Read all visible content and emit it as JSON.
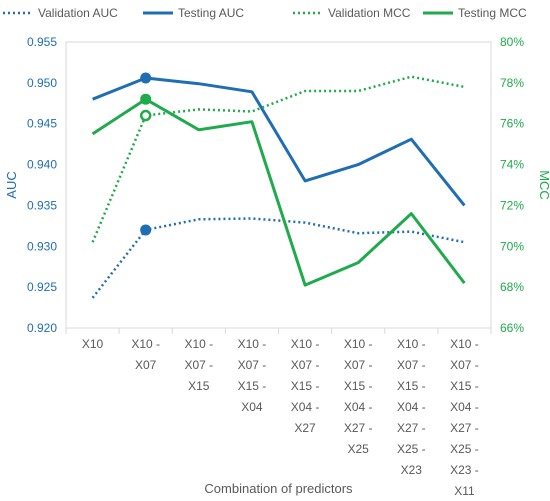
{
  "chart_data": {
    "type": "line",
    "title": "",
    "xlabel": "Combination of predictors",
    "ylabel_left": "AUC",
    "ylabel_right": "MCC",
    "categories": [
      [
        "X10"
      ],
      [
        "X10 -",
        "X07"
      ],
      [
        "X10 -",
        "X07 -",
        "X15"
      ],
      [
        "X10 -",
        "X07 -",
        "X15 -",
        "X04"
      ],
      [
        "X10 -",
        "X07 -",
        "X15 -",
        "X04 -",
        "X27"
      ],
      [
        "X10 -",
        "X07 -",
        "X15 -",
        "X04 -",
        "X27 -",
        "X25"
      ],
      [
        "X10 -",
        "X07 -",
        "X15 -",
        "X04 -",
        "X27 -",
        "X25 -",
        "X23"
      ],
      [
        "X10 -",
        "X07 -",
        "X15 -",
        "X04 -",
        "X27 -",
        "X25 -",
        "X23 -",
        "X11"
      ]
    ],
    "y_left": {
      "min": 0.92,
      "max": 0.955,
      "ticks": [
        "0.920",
        "0.925",
        "0.930",
        "0.935",
        "0.940",
        "0.945",
        "0.950",
        "0.955"
      ],
      "color": "#1f6eb4"
    },
    "y_right": {
      "min": 66,
      "max": 80,
      "ticks": [
        "66%",
        "68%",
        "70%",
        "72%",
        "74%",
        "76%",
        "78%",
        "80%"
      ],
      "color": "#1faa4b"
    },
    "grid": false,
    "legend_position": "top",
    "series": [
      {
        "name": "Validation AUC",
        "axis": "left",
        "style": "dotted",
        "color": "#1f6eb4",
        "values": [
          0.9237,
          0.932,
          0.9333,
          0.9334,
          0.9329,
          0.9316,
          0.9318,
          0.9305
        ],
        "highlight_index": 1,
        "marker": "filled"
      },
      {
        "name": "Testing AUC",
        "axis": "left",
        "style": "solid",
        "color": "#1f6eb4",
        "values": [
          0.948,
          0.9506,
          0.9499,
          0.9489,
          0.938,
          0.94,
          0.9431,
          0.935
        ],
        "highlight_index": 1,
        "marker": "filled"
      },
      {
        "name": "Validation MCC",
        "axis": "right",
        "style": "dotted",
        "color": "#1faa4b",
        "values": [
          70.2,
          76.4,
          76.7,
          76.6,
          77.6,
          77.6,
          78.3,
          77.8
        ],
        "highlight_index": 1,
        "marker": "hollow"
      },
      {
        "name": "Testing MCC",
        "axis": "right",
        "style": "solid",
        "color": "#1faa4b",
        "values": [
          75.5,
          77.2,
          75.7,
          76.1,
          68.1,
          69.2,
          71.6,
          68.2
        ],
        "highlight_index": 1,
        "marker": "filled"
      }
    ]
  }
}
